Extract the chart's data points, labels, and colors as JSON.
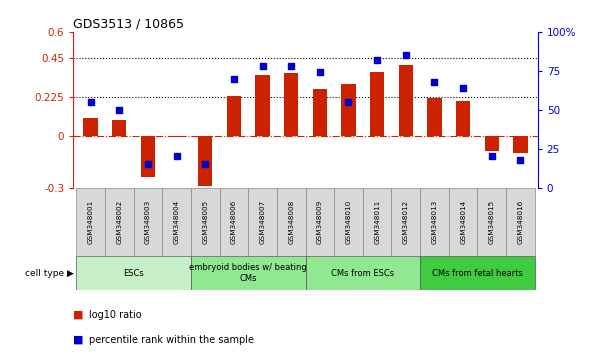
{
  "title": "GDS3513 / 10865",
  "samples": [
    "GSM348001",
    "GSM348002",
    "GSM348003",
    "GSM348004",
    "GSM348005",
    "GSM348006",
    "GSM348007",
    "GSM348008",
    "GSM348009",
    "GSM348010",
    "GSM348011",
    "GSM348012",
    "GSM348013",
    "GSM348014",
    "GSM348015",
    "GSM348016"
  ],
  "log10_ratio": [
    0.1,
    0.09,
    -0.24,
    -0.01,
    -0.29,
    0.23,
    0.35,
    0.36,
    0.27,
    0.3,
    0.37,
    0.41,
    0.22,
    0.2,
    -0.09,
    -0.1
  ],
  "percentile_rank": [
    55,
    50,
    15,
    20,
    15,
    70,
    78,
    78,
    74,
    55,
    82,
    85,
    68,
    64,
    20,
    18
  ],
  "cell_type_groups": [
    {
      "label": "ESCs",
      "start": 0,
      "end": 3,
      "color": "#c8f0c8"
    },
    {
      "label": "embryoid bodies w/ beating\nCMs",
      "start": 4,
      "end": 7,
      "color": "#90e890"
    },
    {
      "label": "CMs from ESCs",
      "start": 8,
      "end": 11,
      "color": "#90e890"
    },
    {
      "label": "CMs from fetal hearts",
      "start": 12,
      "end": 15,
      "color": "#40cc40"
    }
  ],
  "ylim_left": [
    -0.3,
    0.6
  ],
  "ylim_right": [
    0,
    100
  ],
  "yticks_left": [
    -0.3,
    0.0,
    0.225,
    0.45,
    0.6
  ],
  "yticks_left_labels": [
    "-0.3",
    "0",
    "0.225",
    "0.45",
    "0.6"
  ],
  "yticks_right": [
    0,
    25,
    50,
    75,
    100
  ],
  "yticks_right_labels": [
    "0",
    "25",
    "50",
    "75",
    "100%"
  ],
  "hlines": [
    0.225,
    0.45
  ],
  "bar_color": "#cc2200",
  "dot_color": "#0000cc",
  "bar_width": 0.5,
  "zero_line_color": "#cc2200",
  "background_color": "#ffffff",
  "group_colors": [
    "#c8f0c8",
    "#90e890",
    "#90e890",
    "#40cc40"
  ]
}
